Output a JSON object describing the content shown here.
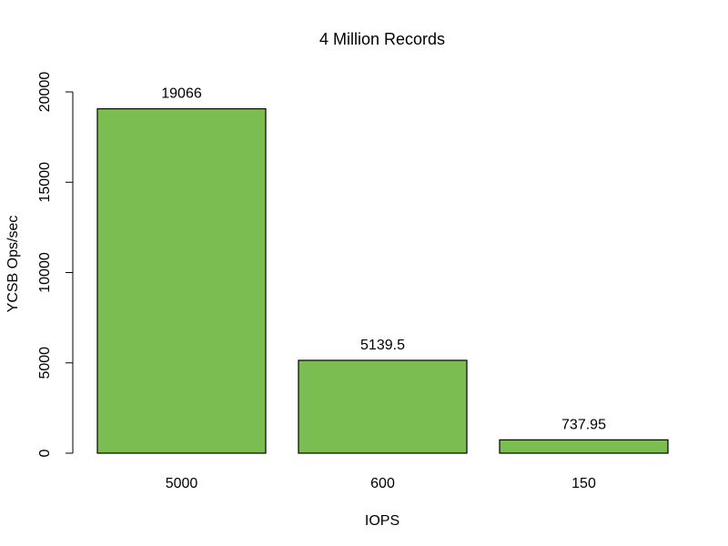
{
  "chart_data": {
    "type": "bar",
    "title": "4 Million Records",
    "xlabel": "IOPS",
    "ylabel": "YCSB Ops/sec",
    "categories": [
      "5000",
      "600",
      "150"
    ],
    "values": [
      19066,
      5139.5,
      737.95
    ],
    "value_labels": [
      "19066",
      "5139.5",
      "737.95"
    ],
    "ylim": [
      0,
      20000
    ],
    "yticks": [
      0,
      5000,
      10000,
      15000,
      20000
    ],
    "ytick_labels": [
      "0",
      "5000",
      "10000",
      "15000",
      "20000"
    ],
    "grid": false,
    "legend": "none",
    "colors": {
      "bar_fill": "#7cbd52",
      "bar_stroke": "#000000",
      "axis": "#000000",
      "background": "#ffffff"
    }
  }
}
